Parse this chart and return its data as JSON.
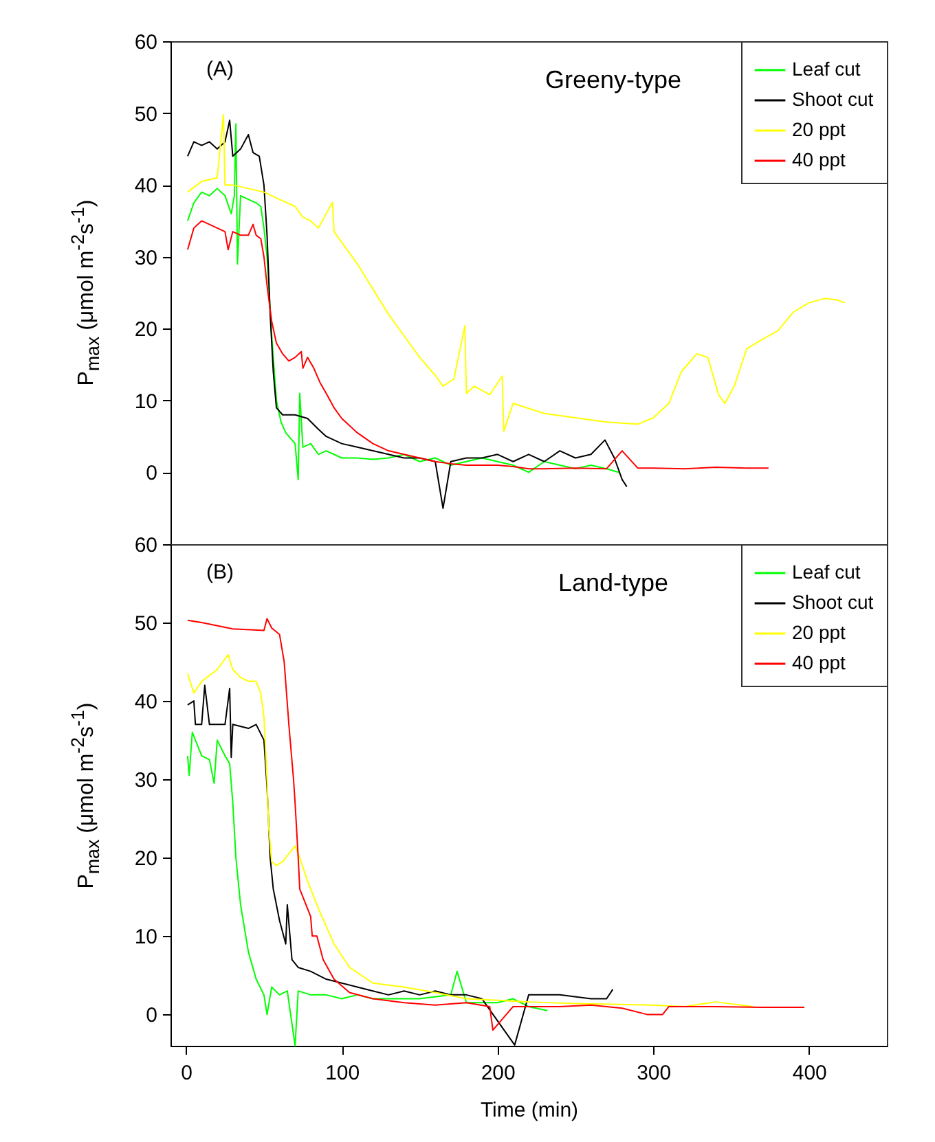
{
  "chart_data": [
    {
      "type": "line",
      "annotations": [
        "(A)",
        "Greeny-type"
      ],
      "ylabel": "P$_{max}$ (μmol m$^{-2}$s$^{-1}$)",
      "xlim": [
        -10,
        450
      ],
      "xticks": [
        0,
        100,
        200,
        300,
        400
      ],
      "ylim": [
        -10,
        60
      ],
      "yticks": [
        0,
        10,
        20,
        30,
        40,
        50,
        60
      ],
      "tick_labels": "y",
      "legend": "top right",
      "series": [
        {
          "name": "Leaf cut",
          "color": "#00ff00",
          "x": [
            1,
            5,
            10,
            15,
            20,
            25,
            29,
            31,
            32,
            33,
            35,
            40,
            45,
            48,
            50,
            52,
            55,
            58,
            61,
            64,
            70,
            72,
            73,
            75,
            80,
            85,
            90,
            100,
            110,
            120,
            130,
            140,
            150,
            160,
            170,
            180,
            190,
            200,
            210,
            220,
            230,
            240,
            250,
            260,
            270,
            278
          ],
          "values": [
            35,
            37.5,
            39,
            38.5,
            39.5,
            38.5,
            36,
            38.5,
            48.5,
            29,
            38.5,
            38,
            37.5,
            37,
            34,
            30,
            19,
            10,
            7,
            5.5,
            4,
            -1,
            11,
            3.5,
            4,
            2.5,
            3,
            2,
            2,
            1.8,
            2,
            2.5,
            1.5,
            2,
            1,
            1.5,
            2,
            1.5,
            1,
            0,
            1.5,
            1,
            0.5,
            1,
            0.5,
            0
          ]
        },
        {
          "name": "Shoot cut",
          "color": "#000000",
          "x": [
            1,
            5,
            10,
            15,
            20,
            25,
            28,
            30,
            35,
            40,
            43,
            47,
            50,
            52,
            54,
            56,
            58,
            62,
            70,
            78,
            85,
            90,
            100,
            110,
            120,
            130,
            140,
            150,
            160,
            165,
            170,
            180,
            190,
            200,
            210,
            220,
            230,
            240,
            250,
            260,
            269,
            275,
            280,
            283
          ],
          "values": [
            44,
            46,
            45.5,
            46,
            45,
            46,
            49,
            44,
            45,
            47,
            44.5,
            44,
            40,
            33,
            22,
            14,
            9,
            8,
            8,
            7.5,
            6,
            5,
            4,
            3.5,
            3,
            2.5,
            2,
            2,
            1.5,
            -5,
            1.5,
            2,
            2,
            2.5,
            1.5,
            2.5,
            1.5,
            3,
            2,
            2.5,
            4.5,
            2,
            -1,
            -2
          ]
        },
        {
          "name": "20 ppt",
          "color": "#ffff00",
          "x": [
            1,
            10,
            20,
            24,
            25,
            30,
            40,
            50,
            60,
            70,
            75,
            80,
            85,
            94,
            95,
            100,
            110,
            120,
            130,
            140,
            150,
            160,
            165,
            172,
            179,
            180,
            185,
            195,
            203,
            204,
            210,
            230,
            250,
            270,
            290,
            300,
            310,
            318,
            328,
            335,
            342,
            346,
            352,
            360,
            370,
            380,
            390,
            400,
            410,
            418,
            423
          ],
          "values": [
            39,
            40.5,
            41,
            49.8,
            40,
            40,
            39.5,
            39,
            38,
            37,
            35.5,
            35,
            34,
            37.6,
            33.5,
            32,
            29,
            25.5,
            22,
            19,
            16,
            13.5,
            12,
            13,
            20.4,
            11,
            12,
            10.8,
            13.4,
            5.7,
            9.6,
            8.2,
            7.6,
            7,
            6.7,
            7.6,
            9.6,
            14,
            16.5,
            16,
            10.8,
            9.6,
            12,
            17.2,
            18.5,
            19.7,
            22.3,
            23.6,
            24.2,
            24,
            23.6
          ]
        },
        {
          "name": "40 ppt",
          "color": "#ff0000",
          "x": [
            1,
            5,
            10,
            15,
            20,
            25,
            27,
            30,
            35,
            40,
            43,
            45,
            48,
            50,
            52,
            55,
            58,
            62,
            66,
            70,
            74,
            75,
            78,
            82,
            86,
            90,
            95,
            100,
            110,
            120,
            130,
            140,
            150,
            160,
            170,
            180,
            190,
            200,
            210,
            220,
            230,
            250,
            270,
            280,
            290,
            300,
            320,
            340,
            360,
            374
          ],
          "values": [
            31,
            34,
            35,
            34.5,
            34,
            33.5,
            31,
            33.5,
            33,
            33,
            34.5,
            33,
            32.5,
            30,
            26,
            21,
            18,
            16.5,
            15.5,
            16,
            16.8,
            14.5,
            16,
            14.5,
            12.5,
            11,
            9,
            7.5,
            5.5,
            4,
            3,
            2.5,
            2,
            1.5,
            1.2,
            1,
            1,
            1,
            0.8,
            0.5,
            0.5,
            0.6,
            0.5,
            3,
            0.6,
            0.6,
            0.5,
            0.7,
            0.6,
            0.6
          ]
        }
      ]
    },
    {
      "type": "line",
      "annotations": [
        "(B)",
        "Land-type"
      ],
      "ylabel": "P$_{max}$ (μmol m$^{-2}$s$^{-1}$)",
      "xlabel": "Time (min)",
      "xlim": [
        -10,
        450
      ],
      "xticks": [
        0,
        100,
        200,
        300,
        400
      ],
      "ylim": [
        -4,
        60
      ],
      "yticks": [
        0,
        10,
        20,
        30,
        40,
        50,
        60
      ],
      "legend": "top right",
      "series": [
        {
          "name": "Leaf cut",
          "color": "#00ff00",
          "x": [
            1,
            2,
            4,
            10,
            15,
            18,
            20,
            25,
            28,
            30,
            32,
            35,
            40,
            45,
            50,
            52,
            55,
            60,
            65,
            70,
            72,
            80,
            90,
            100,
            110,
            120,
            150,
            170,
            174,
            180,
            200,
            210,
            220,
            232
          ],
          "values": [
            33,
            30.5,
            36,
            33,
            32.5,
            29.5,
            35,
            33,
            32,
            27,
            20,
            14,
            8,
            4.5,
            2.5,
            0,
            3.5,
            2.5,
            3,
            -4,
            3,
            2.5,
            2.5,
            2,
            2.5,
            2,
            2,
            2.5,
            5.5,
            1.5,
            1.5,
            2,
            1,
            0.5
          ]
        },
        {
          "name": "Shoot cut",
          "color": "#000000",
          "x": [
            1,
            5,
            6,
            10,
            12,
            15,
            25,
            28,
            29,
            30,
            40,
            45,
            50,
            52,
            54,
            56,
            60,
            64,
            65,
            68,
            72,
            80,
            90,
            100,
            110,
            120,
            130,
            140,
            150,
            160,
            170,
            180,
            190,
            211,
            220,
            240,
            260,
            270,
            274
          ],
          "values": [
            39.5,
            40,
            37,
            37,
            42,
            37,
            37,
            41.6,
            32.8,
            37,
            36.5,
            37,
            35,
            29,
            20,
            16,
            12,
            9,
            14,
            7,
            6,
            5.5,
            4.5,
            4,
            3.5,
            3,
            2.5,
            3,
            2.5,
            3,
            2.5,
            2.5,
            2,
            -3.9,
            2.5,
            2.5,
            2,
            2,
            3.2
          ]
        },
        {
          "name": "20 ppt",
          "color": "#ffff00",
          "x": [
            1,
            5,
            10,
            20,
            27,
            30,
            35,
            40,
            45,
            48,
            50,
            52,
            53,
            55,
            58,
            62,
            66,
            70,
            73,
            78,
            85,
            95,
            105,
            120,
            140,
            160,
            180,
            200,
            220,
            250,
            300,
            320,
            340,
            364
          ],
          "values": [
            43.5,
            41,
            42.5,
            44,
            45.9,
            44,
            43,
            42.5,
            42.5,
            41,
            38,
            30,
            24,
            19.5,
            19,
            19.5,
            20.5,
            21.5,
            20,
            17,
            13.5,
            9,
            6,
            4,
            3.5,
            2.8,
            2,
            1.8,
            1.6,
            1.4,
            1.2,
            1,
            1.6,
            1
          ]
        },
        {
          "name": "40 ppt",
          "color": "#ff0000",
          "x": [
            1,
            10,
            30,
            50,
            52,
            55,
            60,
            63,
            66,
            69,
            70,
            72,
            73,
            78,
            80,
            81,
            84,
            88,
            95,
            105,
            120,
            140,
            160,
            180,
            195,
            197,
            210,
            240,
            260,
            280,
            296,
            306,
            310,
            340,
            370,
            397
          ],
          "values": [
            50.3,
            50,
            49.2,
            49,
            50.5,
            49.3,
            48.5,
            45,
            37,
            30,
            27,
            20,
            16,
            13.5,
            12.5,
            10,
            10,
            7,
            4.5,
            2.8,
            2,
            1.5,
            1.2,
            1.5,
            1,
            -2,
            1,
            1,
            1.2,
            0.8,
            0,
            0,
            1,
            1,
            0.9,
            0.9
          ]
        }
      ]
    }
  ]
}
